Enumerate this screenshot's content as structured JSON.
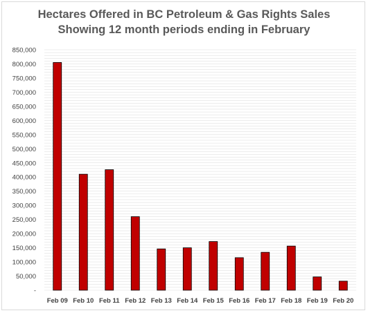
{
  "chart_data": {
    "type": "bar",
    "title": "Hectares Offered in BC Petroleum & Gas Rights Sales",
    "subtitle": "Showing 12 month periods ending in February",
    "xlabel": "",
    "ylabel": "",
    "categories": [
      "Feb 09",
      "Feb 10",
      "Feb 11",
      "Feb 12",
      "Feb 13",
      "Feb 14",
      "Feb 15",
      "Feb 16",
      "Feb 17",
      "Feb 18",
      "Feb 19",
      "Feb 20"
    ],
    "values": [
      805000,
      410000,
      426000,
      260000,
      146000,
      150000,
      172000,
      115000,
      134000,
      156000,
      47000,
      32000
    ],
    "ylim": [
      0,
      850000
    ],
    "yticks": [
      "-",
      "50,000",
      "100,000",
      "150,000",
      "200,000",
      "250,000",
      "300,000",
      "350,000",
      "400,000",
      "450,000",
      "500,000",
      "550,000",
      "600,000",
      "650,000",
      "700,000",
      "750,000",
      "800,000",
      "850,000"
    ],
    "ytick_step": 50000,
    "grid": true,
    "legend": "none",
    "colors": {
      "bar_fill": "#c00000",
      "bar_edge": "#000000",
      "grid": "#d9d9d9",
      "text": "#404040",
      "title": "#595959"
    }
  }
}
